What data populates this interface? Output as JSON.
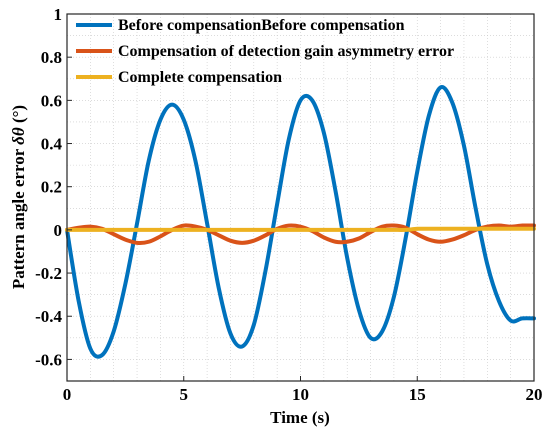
{
  "chart_data": {
    "type": "line",
    "xlabel": "Time (s)",
    "ylabel": "Pattern angle error",
    "ylabel_symbol": "δθ",
    "ylabel_unit": "(°)",
    "xlim": [
      0,
      20
    ],
    "ylim": [
      -0.7,
      1
    ],
    "x_ticks": [
      "0",
      "5",
      "10",
      "15",
      "20"
    ],
    "y_ticks": [
      "1",
      "0.8",
      "0.6",
      "0.4",
      "0.2",
      "0",
      "-0.2",
      "-0.4",
      "-0.6"
    ],
    "grid": true,
    "legend_position": "top-left",
    "x": [
      0,
      0.5,
      1,
      1.5,
      2,
      2.5,
      3,
      3.5,
      4,
      4.5,
      5,
      5.5,
      6,
      6.5,
      7,
      7.5,
      8,
      8.5,
      9,
      9.5,
      10,
      10.5,
      11,
      11.5,
      12,
      12.5,
      13,
      13.5,
      14,
      14.5,
      15,
      15.5,
      16,
      16.5,
      17,
      17.5,
      18,
      18.5,
      19,
      19.5,
      20
    ],
    "series": [
      {
        "name": "Before compensationBefore compensation",
        "color": "#0072BD",
        "values": [
          0.0,
          -0.33,
          -0.55,
          -0.58,
          -0.47,
          -0.25,
          0.03,
          0.32,
          0.51,
          0.58,
          0.51,
          0.32,
          0.03,
          -0.27,
          -0.48,
          -0.54,
          -0.44,
          -0.19,
          0.12,
          0.42,
          0.6,
          0.6,
          0.45,
          0.18,
          -0.13,
          -0.37,
          -0.5,
          -0.47,
          -0.31,
          -0.04,
          0.27,
          0.53,
          0.66,
          0.59,
          0.39,
          0.1,
          -0.16,
          -0.33,
          -0.42,
          -0.41,
          -0.41
        ]
      },
      {
        "name": "Compensation of detection gain asymmetry error",
        "color": "#D95319",
        "values": [
          0.0,
          0.01,
          0.015,
          0.005,
          -0.02,
          -0.045,
          -0.06,
          -0.055,
          -0.03,
          0.0,
          0.02,
          0.015,
          0.0,
          -0.025,
          -0.05,
          -0.06,
          -0.05,
          -0.025,
          0.005,
          0.02,
          0.015,
          -0.005,
          -0.035,
          -0.055,
          -0.055,
          -0.04,
          -0.01,
          0.015,
          0.02,
          0.01,
          -0.02,
          -0.045,
          -0.055,
          -0.045,
          -0.025,
          0.0,
          0.015,
          0.02,
          0.015,
          0.02,
          0.02
        ]
      },
      {
        "name": "Complete compensation",
        "color": "#EDB120",
        "values": [
          0.0,
          0.0,
          0.0,
          0.0,
          0.0,
          0.0,
          0.0,
          0.0,
          0.0,
          0.0,
          0.0,
          0.0,
          0.0,
          0.0,
          0.0,
          0.0,
          0.0,
          0.0,
          0.0,
          0.0,
          0.0,
          0.0,
          0.0,
          0.0,
          0.0,
          0.0,
          0.0,
          0.0,
          0.0,
          0.0,
          0.005,
          0.005,
          0.005,
          0.005,
          0.005,
          0.005,
          0.005,
          0.005,
          0.005,
          0.005,
          0.005
        ]
      }
    ]
  }
}
